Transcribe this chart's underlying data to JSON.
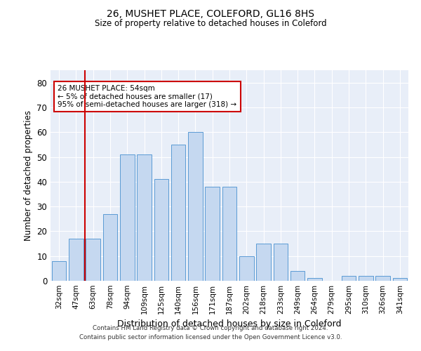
{
  "title1": "26, MUSHET PLACE, COLEFORD, GL16 8HS",
  "title2": "Size of property relative to detached houses in Coleford",
  "xlabel": "Distribution of detached houses by size in Coleford",
  "ylabel": "Number of detached properties",
  "categories": [
    "32sqm",
    "47sqm",
    "63sqm",
    "78sqm",
    "94sqm",
    "109sqm",
    "125sqm",
    "140sqm",
    "156sqm",
    "171sqm",
    "187sqm",
    "202sqm",
    "218sqm",
    "233sqm",
    "249sqm",
    "264sqm",
    "279sqm",
    "295sqm",
    "310sqm",
    "326sqm",
    "341sqm"
  ],
  "values": [
    8,
    17,
    17,
    27,
    51,
    51,
    41,
    55,
    60,
    38,
    38,
    10,
    15,
    15,
    4,
    1,
    0,
    2,
    2,
    2,
    1
  ],
  "bar_color": "#c5d8f0",
  "bar_edge_color": "#5b9bd5",
  "annotation_text": "26 MUSHET PLACE: 54sqm\n← 5% of detached houses are smaller (17)\n95% of semi-detached houses are larger (318) →",
  "annotation_box_color": "white",
  "annotation_box_edge_color": "#cc0000",
  "footer1": "Contains HM Land Registry data © Crown copyright and database right 2024.",
  "footer2": "Contains public sector information licensed under the Open Government Licence v3.0.",
  "ylim": [
    0,
    85
  ],
  "yticks": [
    0,
    10,
    20,
    30,
    40,
    50,
    60,
    70,
    80
  ],
  "background_color": "#e8eef8",
  "grid_color": "#ffffff",
  "vline_color": "#cc0000",
  "vline_x": 1.5
}
